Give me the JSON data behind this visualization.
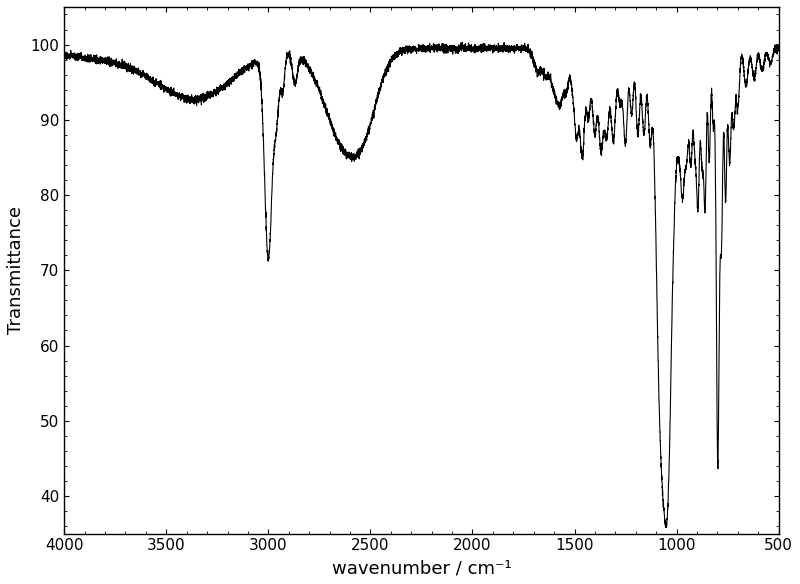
{
  "title": "",
  "xlabel": "wavenumber / cm⁻¹",
  "ylabel": "Transmittance",
  "xlim": [
    4000,
    500
  ],
  "ylim": [
    35,
    105
  ],
  "yticks": [
    40,
    50,
    60,
    70,
    80,
    90,
    100
  ],
  "xticks": [
    4000,
    3500,
    3000,
    2500,
    2000,
    1500,
    1000,
    500
  ],
  "line_color": "#000000",
  "background_color": "#ffffff",
  "linewidth": 0.8
}
